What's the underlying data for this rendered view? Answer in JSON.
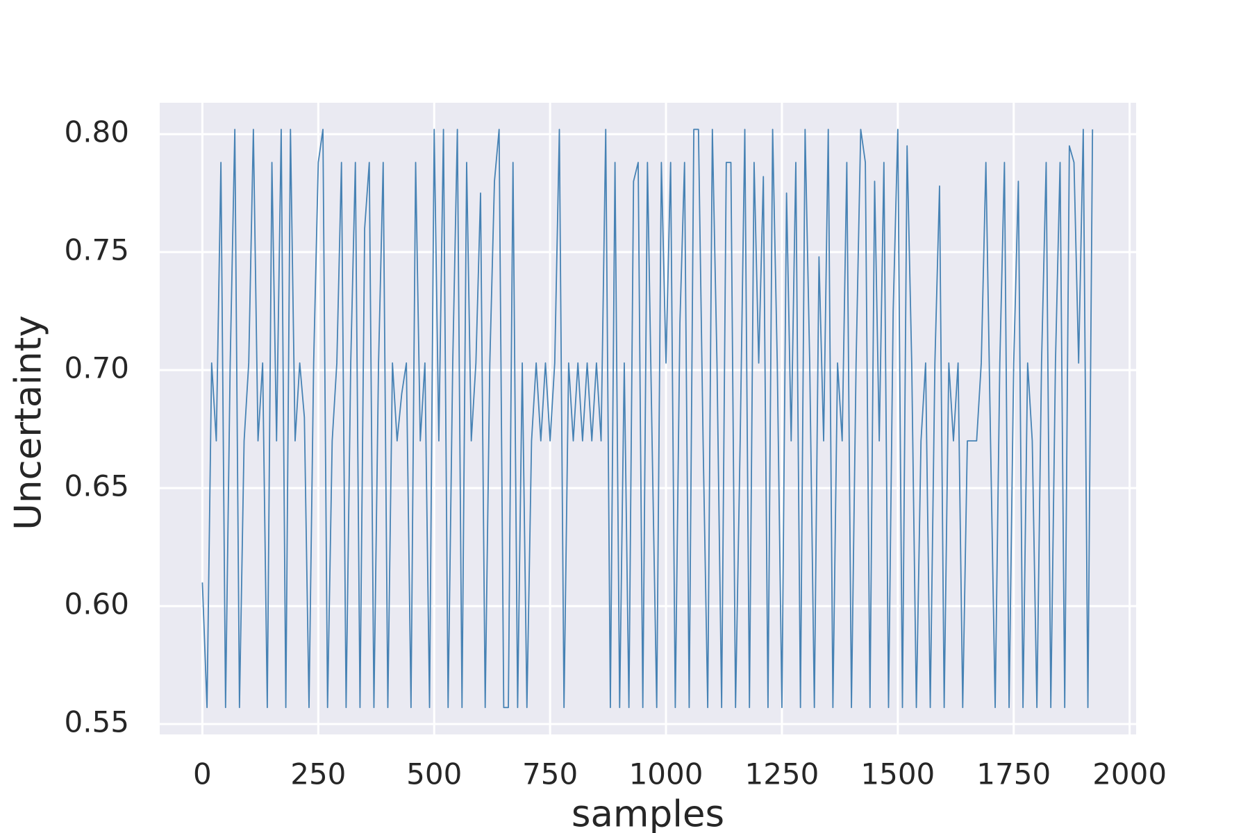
{
  "chart_data": {
    "type": "line",
    "xlabel": "samples",
    "ylabel": "Uncertainty",
    "color": "#4682b4",
    "grid": true,
    "background": "#eaeaf2",
    "xlim": [
      -92,
      2014
    ],
    "ylim": [
      0.5456,
      0.8133
    ],
    "xticks": [
      0,
      250,
      500,
      750,
      1000,
      1250,
      1500,
      1750,
      2000
    ],
    "yticks": [
      0.55,
      {
        "value": 0.6,
        "label": "0.60"
      },
      0.65,
      {
        "value": 0.7,
        "label": "0.70"
      },
      0.75,
      {
        "value": 0.8,
        "label": "0.80"
      }
    ],
    "x": [
      0,
      10,
      20,
      30,
      40,
      50,
      60,
      70,
      80,
      90,
      100,
      110,
      120,
      130,
      140,
      150,
      160,
      170,
      180,
      190,
      200,
      210,
      220,
      230,
      240,
      250,
      260,
      270,
      280,
      290,
      300,
      310,
      320,
      330,
      340,
      350,
      360,
      370,
      380,
      390,
      400,
      410,
      420,
      430,
      440,
      450,
      460,
      470,
      480,
      490,
      500,
      510,
      520,
      530,
      540,
      550,
      560,
      570,
      580,
      590,
      600,
      610,
      620,
      630,
      640,
      650,
      660,
      670,
      680,
      690,
      700,
      710,
      720,
      730,
      740,
      750,
      760,
      770,
      780,
      790,
      800,
      810,
      820,
      830,
      840,
      850,
      860,
      870,
      880,
      890,
      900,
      910,
      920,
      930,
      940,
      950,
      960,
      970,
      980,
      990,
      1000,
      1010,
      1020,
      1030,
      1040,
      1050,
      1060,
      1070,
      1080,
      1090,
      1100,
      1110,
      1120,
      1130,
      1140,
      1150,
      1160,
      1170,
      1180,
      1190,
      1200,
      1210,
      1220,
      1230,
      1240,
      1250,
      1260,
      1270,
      1280,
      1290,
      1300,
      1310,
      1320,
      1330,
      1340,
      1350,
      1360,
      1370,
      1380,
      1390,
      1400,
      1410,
      1420,
      1430,
      1440,
      1450,
      1460,
      1470,
      1480,
      1490,
      1500,
      1510,
      1520,
      1530,
      1540,
      1550,
      1560,
      1570,
      1580,
      1590,
      1600,
      1610,
      1620,
      1630,
      1640,
      1650,
      1660,
      1670,
      1680,
      1690,
      1700,
      1710,
      1720,
      1730,
      1740,
      1750,
      1760,
      1770,
      1780,
      1790,
      1800,
      1810,
      1820,
      1830,
      1840,
      1850,
      1860,
      1870,
      1880,
      1890,
      1900,
      1910,
      1920
    ],
    "values": [
      0.61,
      0.557,
      0.703,
      0.67,
      0.788,
      0.557,
      0.703,
      0.802,
      0.557,
      0.67,
      0.703,
      0.802,
      0.67,
      0.703,
      0.557,
      0.788,
      0.67,
      0.802,
      0.557,
      0.802,
      0.67,
      0.703,
      0.68,
      0.557,
      0.703,
      0.788,
      0.802,
      0.557,
      0.67,
      0.703,
      0.788,
      0.557,
      0.703,
      0.788,
      0.557,
      0.76,
      0.788,
      0.557,
      0.703,
      0.788,
      0.557,
      0.703,
      0.67,
      0.69,
      0.703,
      0.557,
      0.788,
      0.67,
      0.703,
      0.557,
      0.802,
      0.67,
      0.802,
      0.557,
      0.703,
      0.802,
      0.557,
      0.788,
      0.67,
      0.703,
      0.775,
      0.557,
      0.703,
      0.78,
      0.802,
      0.557,
      0.557,
      0.788,
      0.557,
      0.703,
      0.557,
      0.67,
      0.703,
      0.67,
      0.703,
      0.67,
      0.703,
      0.802,
      0.557,
      0.703,
      0.67,
      0.703,
      0.67,
      0.703,
      0.67,
      0.703,
      0.67,
      0.802,
      0.557,
      0.788,
      0.557,
      0.703,
      0.557,
      0.78,
      0.788,
      0.557,
      0.788,
      0.67,
      0.557,
      0.788,
      0.703,
      0.788,
      0.557,
      0.72,
      0.788,
      0.557,
      0.802,
      0.802,
      0.67,
      0.557,
      0.802,
      0.703,
      0.557,
      0.788,
      0.788,
      0.557,
      0.67,
      0.802,
      0.557,
      0.788,
      0.703,
      0.782,
      0.557,
      0.802,
      0.703,
      0.557,
      0.775,
      0.67,
      0.788,
      0.557,
      0.802,
      0.703,
      0.557,
      0.748,
      0.67,
      0.802,
      0.557,
      0.703,
      0.67,
      0.788,
      0.557,
      0.703,
      0.802,
      0.788,
      0.557,
      0.78,
      0.67,
      0.788,
      0.557,
      0.725,
      0.802,
      0.557,
      0.795,
      0.703,
      0.557,
      0.67,
      0.703,
      0.557,
      0.703,
      0.778,
      0.557,
      0.703,
      0.67,
      0.703,
      0.557,
      0.67,
      0.67,
      0.67,
      0.703,
      0.788,
      0.67,
      0.557,
      0.703,
      0.788,
      0.557,
      0.703,
      0.78,
      0.557,
      0.703,
      0.67,
      0.557,
      0.703,
      0.788,
      0.557,
      0.703,
      0.788,
      0.557,
      0.795,
      0.788,
      0.703,
      0.802,
      0.557,
      0.802
    ]
  }
}
